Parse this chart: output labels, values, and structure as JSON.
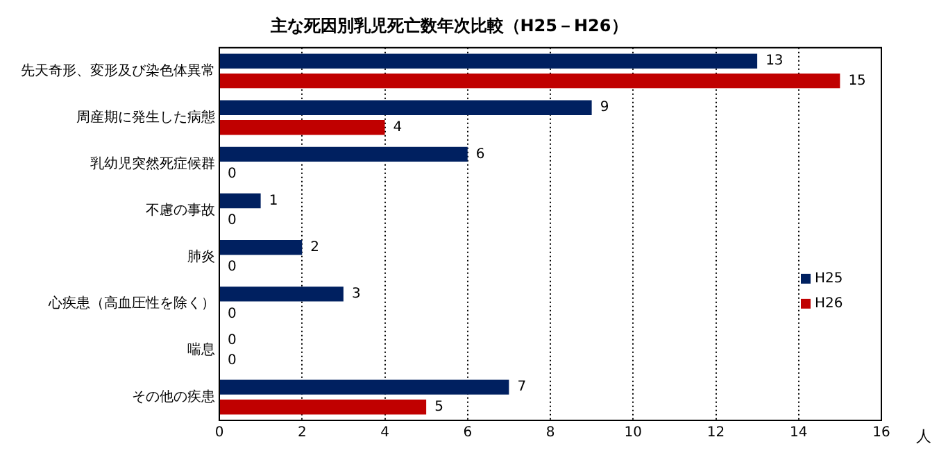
{
  "chart_data": {
    "type": "bar",
    "orientation": "horizontal",
    "title": "主な死因別乳児死亡数年次比較（H25－H26）",
    "xlabel": "人",
    "categories": [
      "先天奇形、変形及び染色体異常",
      "周産期に発生した病態",
      "乳幼児突然死症候群",
      "不慮の事故",
      "肺炎",
      "心疾患（高血圧性を除く）",
      "喘息",
      "その他の疾患"
    ],
    "series": [
      {
        "name": "H25",
        "color": "#002060",
        "values": [
          13,
          9,
          6,
          1,
          2,
          3,
          0,
          7
        ]
      },
      {
        "name": "H26",
        "color": "#c00000",
        "values": [
          15,
          4,
          0,
          0,
          0,
          0,
          0,
          5
        ]
      }
    ],
    "xlim": [
      0,
      16
    ],
    "xticks": [
      0,
      2,
      4,
      6,
      8,
      10,
      12,
      14,
      16
    ],
    "grid": "x",
    "legend": "right",
    "data_labels": true
  }
}
